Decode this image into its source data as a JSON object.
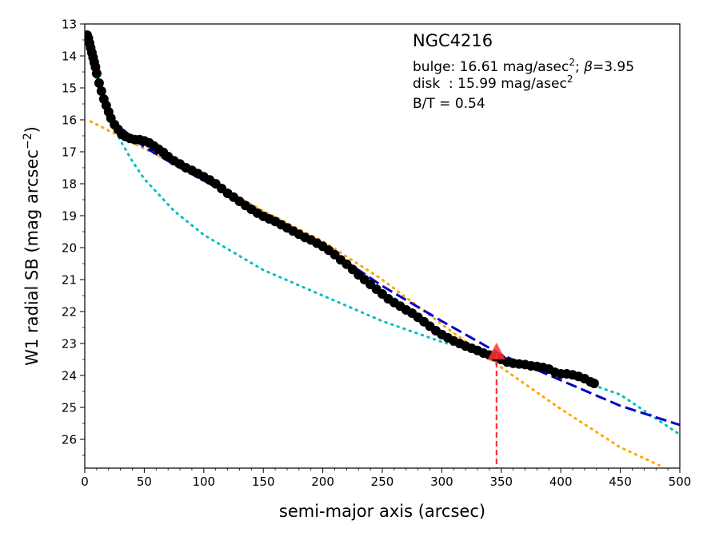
{
  "chart_data": {
    "type": "scatter",
    "title": "",
    "xlabel": "semi-major axis (arcsec)",
    "ylabel_main": "W1 radial SB (mag arcsec",
    "ylabel_sup": "−2",
    "ylabel_close": ")",
    "xlim": [
      0,
      500
    ],
    "ylim": [
      13,
      26.9
    ],
    "y_inverted": true,
    "xticks": [
      0,
      50,
      100,
      150,
      200,
      250,
      300,
      350,
      400,
      450,
      500
    ],
    "yticks": [
      13,
      14,
      15,
      16,
      17,
      18,
      19,
      20,
      21,
      22,
      23,
      24,
      25,
      26
    ],
    "grid": false,
    "annotation": {
      "galaxy": "NGC4216",
      "bulge_prefix": "bulge: 16.61 mag/asec",
      "bulge_sup": "2",
      "bulge_mid": "; ",
      "beta_symbol": "β",
      "bulge_beta": "=3.95",
      "disk_prefix": "disk  : 15.99 mag/asec",
      "disk_sup": "2",
      "bt": "B/T = 0.54"
    },
    "marker": {
      "x": 346,
      "y": 23.3
    },
    "colors": {
      "data": "#000000",
      "total": "#0000cc",
      "bulge": "#00bfbf",
      "disk": "#ffa500",
      "marker": "#ff3333"
    },
    "series": [
      {
        "kind": "data",
        "points": [
          [
            2,
            13.35
          ],
          [
            3,
            13.45
          ],
          [
            4,
            13.6
          ],
          [
            5,
            13.75
          ],
          [
            6,
            13.9
          ],
          [
            7,
            14.05
          ],
          [
            8,
            14.2
          ],
          [
            9,
            14.35
          ],
          [
            10,
            14.55
          ],
          [
            12,
            14.85
          ],
          [
            14,
            15.1
          ],
          [
            16,
            15.35
          ],
          [
            18,
            15.55
          ],
          [
            20,
            15.75
          ],
          [
            22,
            15.95
          ],
          [
            25,
            16.15
          ],
          [
            28,
            16.3
          ],
          [
            31,
            16.45
          ],
          [
            34,
            16.52
          ],
          [
            38,
            16.58
          ],
          [
            42,
            16.62
          ],
          [
            46,
            16.62
          ],
          [
            50,
            16.66
          ],
          [
            54,
            16.72
          ],
          [
            58,
            16.82
          ],
          [
            62,
            16.92
          ],
          [
            66,
            17.02
          ],
          [
            70,
            17.15
          ],
          [
            75,
            17.28
          ],
          [
            80,
            17.38
          ],
          [
            85,
            17.5
          ],
          [
            90,
            17.58
          ],
          [
            95,
            17.68
          ],
          [
            100,
            17.78
          ],
          [
            105,
            17.88
          ],
          [
            110,
            18.0
          ],
          [
            115,
            18.15
          ],
          [
            120,
            18.3
          ],
          [
            125,
            18.42
          ],
          [
            130,
            18.55
          ],
          [
            135,
            18.68
          ],
          [
            140,
            18.8
          ],
          [
            145,
            18.92
          ],
          [
            150,
            19.02
          ],
          [
            155,
            19.1
          ],
          [
            160,
            19.18
          ],
          [
            165,
            19.28
          ],
          [
            170,
            19.38
          ],
          [
            175,
            19.48
          ],
          [
            180,
            19.58
          ],
          [
            185,
            19.68
          ],
          [
            190,
            19.76
          ],
          [
            195,
            19.86
          ],
          [
            200,
            19.96
          ],
          [
            205,
            20.08
          ],
          [
            210,
            20.22
          ],
          [
            215,
            20.38
          ],
          [
            220,
            20.52
          ],
          [
            225,
            20.68
          ],
          [
            230,
            20.85
          ],
          [
            235,
            21.0
          ],
          [
            240,
            21.15
          ],
          [
            245,
            21.3
          ],
          [
            250,
            21.45
          ],
          [
            255,
            21.6
          ],
          [
            260,
            21.72
          ],
          [
            265,
            21.83
          ],
          [
            270,
            21.95
          ],
          [
            275,
            22.05
          ],
          [
            280,
            22.18
          ],
          [
            285,
            22.32
          ],
          [
            290,
            22.46
          ],
          [
            295,
            22.6
          ],
          [
            300,
            22.72
          ],
          [
            305,
            22.82
          ],
          [
            310,
            22.92
          ],
          [
            315,
            23.0
          ],
          [
            320,
            23.08
          ],
          [
            325,
            23.15
          ],
          [
            330,
            23.22
          ],
          [
            335,
            23.3
          ],
          [
            340,
            23.36
          ],
          [
            345,
            23.42
          ],
          [
            350,
            23.5
          ],
          [
            355,
            23.58
          ],
          [
            360,
            23.62
          ],
          [
            365,
            23.64
          ],
          [
            370,
            23.66
          ],
          [
            375,
            23.7
          ],
          [
            380,
            23.72
          ],
          [
            385,
            23.75
          ],
          [
            390,
            23.8
          ],
          [
            395,
            23.9
          ],
          [
            400,
            23.95
          ],
          [
            405,
            23.95
          ],
          [
            410,
            23.98
          ],
          [
            415,
            24.03
          ],
          [
            420,
            24.1
          ],
          [
            425,
            24.2
          ],
          [
            428,
            24.25
          ]
        ]
      },
      {
        "kind": "total",
        "points": [
          [
            32,
            16.3
          ],
          [
            40,
            16.55
          ],
          [
            50,
            16.85
          ],
          [
            75,
            17.4
          ],
          [
            100,
            17.9
          ],
          [
            150,
            18.95
          ],
          [
            200,
            19.95
          ],
          [
            250,
            21.2
          ],
          [
            300,
            22.3
          ],
          [
            350,
            23.35
          ],
          [
            400,
            24.15
          ],
          [
            450,
            24.95
          ],
          [
            500,
            25.55
          ]
        ]
      },
      {
        "kind": "bulge",
        "points": [
          [
            5,
            13.9
          ],
          [
            10,
            14.7
          ],
          [
            20,
            15.85
          ],
          [
            30,
            16.65
          ],
          [
            40,
            17.3
          ],
          [
            50,
            17.85
          ],
          [
            75,
            18.85
          ],
          [
            100,
            19.6
          ],
          [
            150,
            20.7
          ],
          [
            200,
            21.5
          ],
          [
            250,
            22.3
          ],
          [
            300,
            22.95
          ],
          [
            350,
            23.45
          ],
          [
            400,
            23.95
          ],
          [
            450,
            24.6
          ],
          [
            500,
            25.85
          ]
        ]
      },
      {
        "kind": "disk",
        "points": [
          [
            5,
            16.05
          ],
          [
            50,
            16.9
          ],
          [
            100,
            17.85
          ],
          [
            150,
            18.85
          ],
          [
            200,
            19.8
          ],
          [
            250,
            21.0
          ],
          [
            300,
            22.4
          ],
          [
            350,
            23.75
          ],
          [
            400,
            25.05
          ],
          [
            450,
            26.25
          ],
          [
            485,
            26.85
          ]
        ]
      }
    ]
  }
}
